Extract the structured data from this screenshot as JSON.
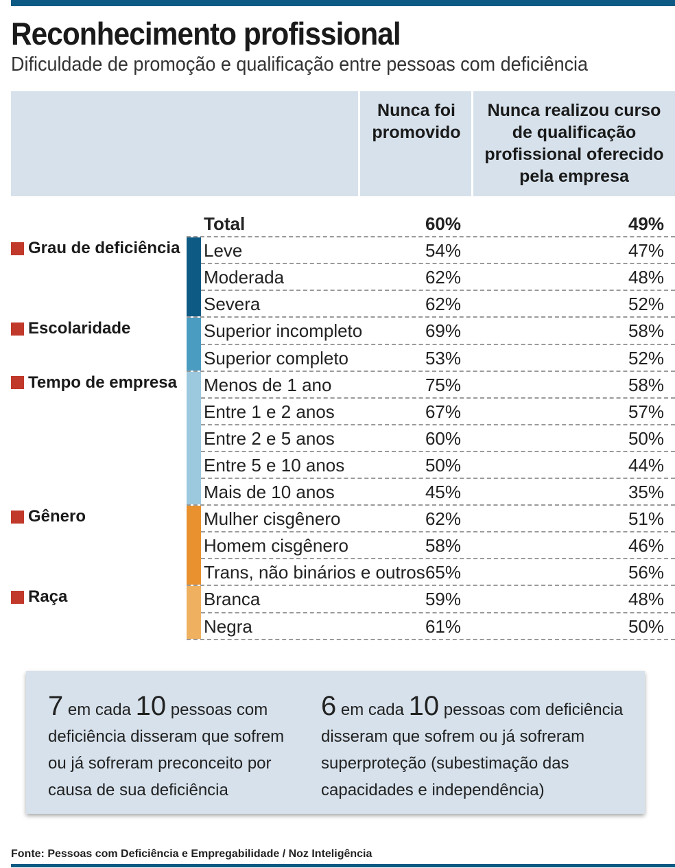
{
  "title": "Reconhecimento profissional",
  "subtitle": "Dificuldade de promoção e qualificação entre pessoas com deficiência",
  "columns": [
    "Nunca foi promovido",
    "Nunca realizou curso de qualificação profissional oferecido pela empresa"
  ],
  "chart_data": {
    "type": "table",
    "title": "Reconhecimento profissional",
    "subtitle": "Dificuldade de promoção e qualificação entre pessoas com deficiência",
    "columns": [
      "Nunca foi promovido",
      "Nunca realizou curso de qualificação profissional oferecido pela empresa"
    ],
    "total": {
      "label": "Total",
      "values": [
        "60%",
        "49%"
      ]
    },
    "groups": [
      {
        "name": "Grau de deficiência",
        "color": "#0d5a84",
        "rows": [
          {
            "label": "Leve",
            "values": [
              "54%",
              "47%"
            ]
          },
          {
            "label": "Moderada",
            "values": [
              "62%",
              "48%"
            ]
          },
          {
            "label": "Severa",
            "values": [
              "62%",
              "52%"
            ]
          }
        ]
      },
      {
        "name": "Escolaridade",
        "color": "#4a9cc1",
        "rows": [
          {
            "label": "Superior incompleto",
            "values": [
              "69%",
              "58%"
            ]
          },
          {
            "label": "Superior completo",
            "values": [
              "53%",
              "52%"
            ]
          }
        ]
      },
      {
        "name": "Tempo de empresa",
        "color": "#9cc9de",
        "rows": [
          {
            "label": "Menos de 1 ano",
            "values": [
              "75%",
              "58%"
            ]
          },
          {
            "label": "Entre 1 e 2 anos",
            "values": [
              "67%",
              "57%"
            ]
          },
          {
            "label": "Entre 2 e 5 anos",
            "values": [
              "60%",
              "50%"
            ]
          },
          {
            "label": "Entre 5 e 10 anos",
            "values": [
              "50%",
              "44%"
            ]
          },
          {
            "label": "Mais de 10 anos",
            "values": [
              "45%",
              "35%"
            ]
          }
        ]
      },
      {
        "name": "Gênero",
        "color": "#e8912e",
        "rows": [
          {
            "label": "Mulher cisgênero",
            "values": [
              "62%",
              "51%"
            ]
          },
          {
            "label": "Homem cisgênero",
            "values": [
              "58%",
              "46%"
            ]
          },
          {
            "label": "Trans, não binários e outros",
            "values": [
              "65%",
              "56%"
            ]
          }
        ]
      },
      {
        "name": "Raça",
        "color": "#efb15f",
        "rows": [
          {
            "label": "Branca",
            "values": [
              "59%",
              "48%"
            ]
          },
          {
            "label": "Negra",
            "values": [
              "61%",
              "50%"
            ]
          }
        ]
      }
    ]
  },
  "facts": [
    {
      "n1": "7",
      "mid": " em cada ",
      "n2": "10",
      "rest": " pessoas com deficiência disseram que sofrem ou já sofreram preconceito por causa de sua deficiência"
    },
    {
      "n1": "6",
      "mid": " em cada ",
      "n2": "10",
      "rest": " pessoas com deficiência disseram que sofrem ou já sofreram superproteção (subestimação das capacidades e independência)"
    }
  ],
  "source": "Fonte: Pessoas com Deficiência e Empregabilidade / Noz Inteligência"
}
